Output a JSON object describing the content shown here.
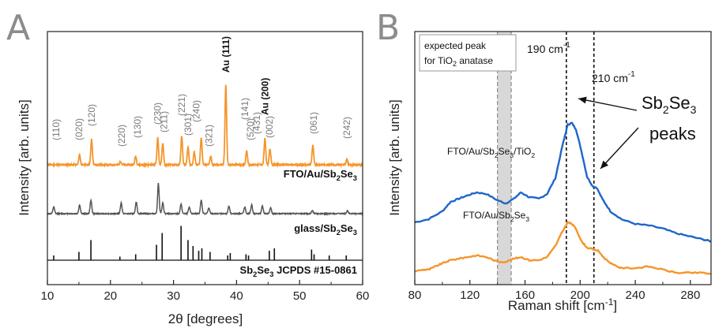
{
  "panel_a": {
    "letter": "A",
    "xlabel_prefix": "2θ [",
    "xlabel_unit": "degrees",
    "xlabel_suffix": "]",
    "ylabel": "Intensity [arb. units]"
  },
  "panel_b": {
    "letter": "B",
    "xlabel_main": "Raman shift [cm",
    "xlabel_sup": "-1",
    "xlabel_end": "]",
    "ylabel": "Intensity [arb. units]"
  },
  "chart_data": [
    {
      "type": "line",
      "xlabel": "2θ [degrees]",
      "ylabel": "Intensity [arb. units]",
      "xlim": [
        10,
        60
      ],
      "xticks": [
        10,
        20,
        30,
        40,
        50,
        60
      ],
      "yticks_shown": false,
      "colors": {
        "fto_au": "#f5952a",
        "glass": "#555555",
        "jcpds": "#111111"
      },
      "series": [
        {
          "name": "FTO/Au/Sb2Se3",
          "label_parts": [
            "FTO/Au/Sb",
            "2",
            "Se",
            "3"
          ],
          "peaks": [
            [
              15.1,
              14
            ],
            [
              17.0,
              35
            ],
            [
              21.6,
              5
            ],
            [
              24.0,
              12
            ],
            [
              27.5,
              38
            ],
            [
              28.3,
              30
            ],
            [
              31.3,
              40
            ],
            [
              32.3,
              24
            ],
            [
              33.3,
              18
            ],
            [
              34.4,
              38
            ],
            [
              35.9,
              12
            ],
            [
              38.3,
              110
            ],
            [
              41.6,
              20
            ],
            [
              44.5,
              36
            ],
            [
              45.3,
              22
            ],
            [
              52.1,
              28
            ],
            [
              57.5,
              8
            ]
          ]
        },
        {
          "name": "glass/Sb2Se3",
          "label_parts": [
            "glass/Sb",
            "2",
            "Se",
            "3"
          ],
          "peaks": [
            [
              11.0,
              14
            ],
            [
              15.1,
              18
            ],
            [
              16.9,
              28
            ],
            [
              21.7,
              22
            ],
            [
              24.1,
              24
            ],
            [
              27.6,
              62
            ],
            [
              28.3,
              22
            ],
            [
              31.2,
              20
            ],
            [
              32.5,
              14
            ],
            [
              34.4,
              28
            ],
            [
              35.6,
              12
            ],
            [
              38.8,
              16
            ],
            [
              41.3,
              14
            ],
            [
              42.4,
              18
            ],
            [
              44.1,
              16
            ],
            [
              45.4,
              12
            ],
            [
              52.0,
              6
            ],
            [
              57.6,
              6
            ]
          ]
        },
        {
          "name": "Sb2Se3 JCPDS #15-0861",
          "label_parts": [
            "Sb",
            "2",
            "Se",
            "3",
            " JCPDS #15-0861"
          ],
          "peaks": [
            [
              11.0,
              8
            ],
            [
              15.0,
              14
            ],
            [
              16.9,
              34
            ],
            [
              21.5,
              6
            ],
            [
              24.0,
              10
            ],
            [
              27.3,
              26
            ],
            [
              28.2,
              46
            ],
            [
              31.2,
              58
            ],
            [
              32.3,
              34
            ],
            [
              33.1,
              24
            ],
            [
              34.0,
              16
            ],
            [
              34.5,
              20
            ],
            [
              35.8,
              14
            ],
            [
              38.6,
              8
            ],
            [
              39.0,
              12
            ],
            [
              41.5,
              10
            ],
            [
              41.9,
              8
            ],
            [
              45.2,
              16
            ],
            [
              46.0,
              20
            ],
            [
              51.9,
              18
            ],
            [
              52.3,
              10
            ],
            [
              54.7,
              8
            ],
            [
              57.4,
              8
            ]
          ]
        }
      ],
      "reflections": [
        {
          "hkl": "(110)",
          "x": 11.4
        },
        {
          "hkl": "(020)",
          "x": 15.0
        },
        {
          "hkl": "(120)",
          "x": 17.0
        },
        {
          "hkl": "(220)",
          "x": 21.8
        },
        {
          "hkl": "(130)",
          "x": 24.3
        },
        {
          "hkl": "(230)",
          "x": 27.5
        },
        {
          "hkl": "(211)",
          "x": 28.5
        },
        {
          "hkl": "(221)",
          "x": 31.3
        },
        {
          "hkl": "(301)",
          "x": 32.3
        },
        {
          "hkl": "(240)",
          "x": 33.6
        },
        {
          "hkl": "(321)",
          "x": 35.6
        },
        {
          "hkl": "(141)",
          "x": 41.3
        },
        {
          "hkl": "(520)",
          "x": 42.2
        },
        {
          "hkl": "(431)",
          "x": 43.2
        },
        {
          "hkl": "(002)",
          "x": 45.2
        },
        {
          "hkl": "(061)",
          "x": 52.2
        },
        {
          "hkl": "(242)",
          "x": 57.5
        }
      ],
      "annotations": [
        {
          "text": "Au (111)",
          "x": 38.3
        },
        {
          "text": "Au (200)",
          "x": 44.5
        }
      ]
    },
    {
      "type": "line",
      "xlabel": "Raman shift [cm-1]",
      "ylabel": "Intensity [arb. units]",
      "xlim": [
        80,
        295
      ],
      "xticks": [
        80,
        120,
        160,
        200,
        240,
        280
      ],
      "yticks_shown": false,
      "colors": {
        "fto_au_tio2": "#1e66c8",
        "fto_au": "#f5952a",
        "band": "#d8d8d8"
      },
      "series": [
        {
          "name": "FTO/Au/Sb2Se3/TiO2",
          "label_parts": [
            "FTO/Au/Sb",
            "2",
            "Se",
            "3",
            "/TiO",
            "2"
          ],
          "points": [
            [
              80,
              0.18
            ],
            [
              90,
              0.2
            ],
            [
              100,
              0.25
            ],
            [
              106,
              0.31
            ],
            [
              112,
              0.33
            ],
            [
              118,
              0.35
            ],
            [
              125,
              0.37
            ],
            [
              132,
              0.36
            ],
            [
              140,
              0.32
            ],
            [
              146,
              0.3
            ],
            [
              152,
              0.33
            ],
            [
              157,
              0.37
            ],
            [
              163,
              0.34
            ],
            [
              170,
              0.33
            ],
            [
              176,
              0.36
            ],
            [
              182,
              0.46
            ],
            [
              187,
              0.66
            ],
            [
              191,
              0.8
            ],
            [
              194,
              0.81
            ],
            [
              197,
              0.77
            ],
            [
              201,
              0.63
            ],
            [
              205,
              0.47
            ],
            [
              209,
              0.41
            ],
            [
              212,
              0.4
            ],
            [
              216,
              0.33
            ],
            [
              222,
              0.25
            ],
            [
              230,
              0.2
            ],
            [
              240,
              0.17
            ],
            [
              250,
              0.16
            ],
            [
              260,
              0.14
            ],
            [
              270,
              0.11
            ],
            [
              280,
              0.09
            ],
            [
              290,
              0.07
            ],
            [
              295,
              0.06
            ]
          ]
        },
        {
          "name": "FTO/Au/Sb2Se3",
          "label_parts": [
            "FTO/Au/Sb",
            "2",
            "Se",
            "3"
          ],
          "points": [
            [
              80,
              -0.13
            ],
            [
              86,
              -0.12
            ],
            [
              90,
              -0.12
            ],
            [
              95,
              -0.1
            ],
            [
              100,
              -0.08
            ],
            [
              106,
              -0.06
            ],
            [
              112,
              -0.05
            ],
            [
              118,
              -0.04
            ],
            [
              125,
              -0.03
            ],
            [
              132,
              -0.04
            ],
            [
              140,
              -0.07
            ],
            [
              146,
              -0.07
            ],
            [
              152,
              -0.05
            ],
            [
              157,
              -0.04
            ],
            [
              163,
              -0.06
            ],
            [
              170,
              -0.06
            ],
            [
              176,
              -0.04
            ],
            [
              182,
              0.03
            ],
            [
              187,
              0.12
            ],
            [
              191,
              0.18
            ],
            [
              194,
              0.17
            ],
            [
              197,
              0.14
            ],
            [
              201,
              0.06
            ],
            [
              205,
              0.02
            ],
            [
              209,
              0.01
            ],
            [
              213,
              0.0
            ],
            [
              218,
              -0.05
            ],
            [
              224,
              -0.09
            ],
            [
              230,
              -0.11
            ],
            [
              240,
              -0.11
            ],
            [
              250,
              -0.1
            ],
            [
              260,
              -0.12
            ],
            [
              270,
              -0.14
            ],
            [
              280,
              -0.14
            ],
            [
              290,
              -0.14
            ],
            [
              295,
              -0.15
            ]
          ]
        }
      ],
      "shaded_band_x": [
        140,
        150
      ],
      "reference_lines_x": [
        190,
        210
      ],
      "annotations": {
        "expected_line1": "expected peak",
        "expected_line2_pre": "for TiO",
        "expected_line2_sub": "2",
        "expected_line2_post": " anatase",
        "peak190_main": "190 cm",
        "peak190_sup": "-1",
        "peak210_main": "210 cm",
        "peak210_sup": "-1",
        "sb_main": "Sb",
        "sb_sub1": "2",
        "sb_se": "Se",
        "sb_sub2": "3",
        "sb_line2": "peaks"
      }
    }
  ]
}
